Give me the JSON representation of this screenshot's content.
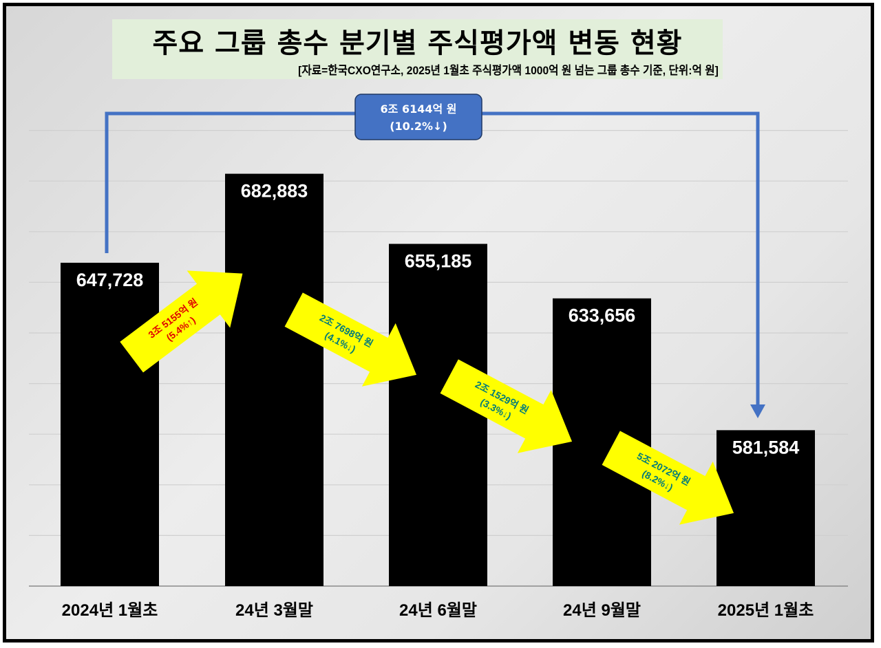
{
  "title": "주요 그룹 총수 분기별 주식평가액 변동 현황",
  "subtitle": "[자료=한국CXO연구소, 2025년 1월초 주식평가액 1000억 원 넘는 그룹 총수 기준, 단위:억 원]",
  "colors": {
    "bar": "#000000",
    "bar_label": "#ffffff",
    "title_bg": "#e2efda",
    "total_connector": "#4472c4",
    "arrow_fill": "#ffff00",
    "increase_text": "#e00000",
    "decrease_text": "#007a7a"
  },
  "total_change": {
    "line1": "6조 6144억 원",
    "line2": "(10.2%↓)"
  },
  "changes": [
    {
      "line1": "3조 5155억 원",
      "line2": "(5.4%↑)",
      "direction": "up"
    },
    {
      "line1": "2조 7698억 원",
      "line2": "(4.1%↓)",
      "direction": "down"
    },
    {
      "line1": "2조 1529억 원",
      "line2": "(3.3%↓)",
      "direction": "down"
    },
    {
      "line1": "5조 2072억 원",
      "line2": "(8.2%↓)",
      "direction": "down"
    }
  ],
  "chart_data": {
    "type": "bar",
    "title": "주요 그룹 총수 분기별 주식평가액 변동 현황",
    "subtitle": "[자료=한국CXO연구소, 2025년 1월초 주식평가액 1000억 원 넘는 그룹 총수 기준, 단위:억 원]",
    "xlabel": "",
    "ylabel": "",
    "unit": "억 원",
    "categories": [
      "2024년 1월초",
      "24년 3월말",
      "24년 6월말",
      "24년 9월말",
      "2025년 1월초"
    ],
    "values": [
      647728,
      682883,
      655185,
      633656,
      581584
    ],
    "value_labels": [
      "647,728",
      "682,883",
      "655,185",
      "633,656",
      "581,584"
    ],
    "ylim": [
      520000,
      700000
    ],
    "ytick_step": 20000,
    "grid": true,
    "y_axis_labels_shown": false,
    "legend": null,
    "annotations": [
      {
        "from": "2024년 1월초",
        "to": "24년 3월말",
        "text": "3조 5155억 원 (5.4%↑)"
      },
      {
        "from": "24년 3월말",
        "to": "24년 6월말",
        "text": "2조 7698억 원 (4.1%↓)"
      },
      {
        "from": "24년 6월말",
        "to": "24년 9월말",
        "text": "2조 1529억 원 (3.3%↓)"
      },
      {
        "from": "24년 9월말",
        "to": "2025년 1월초",
        "text": "5조 2072억 원 (8.2%↓)"
      },
      {
        "from": "2024년 1월초",
        "to": "2025년 1월초",
        "text": "6조 6144억 원 (10.2%↓)"
      }
    ]
  }
}
